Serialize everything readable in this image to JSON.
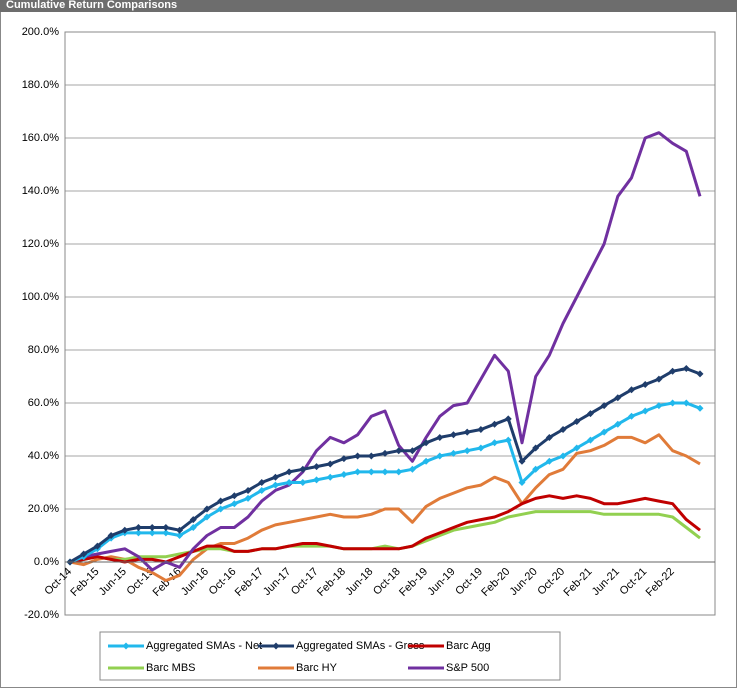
{
  "chart_data": {
    "type": "line",
    "title": "Cumulative Return Comparisons",
    "categories": [
      "Oct-14",
      null,
      "Feb-15",
      null,
      "Jun-15",
      null,
      "Oct-15",
      null,
      "Feb-16",
      null,
      "Jun-16",
      null,
      "Oct-16",
      null,
      "Feb-17",
      null,
      "Jun-17",
      null,
      "Oct-17",
      null,
      "Feb-18",
      null,
      "Jun-18",
      null,
      "Oct-18",
      null,
      "Feb-19",
      null,
      "Jun-19",
      null,
      "Oct-19",
      null,
      "Feb-20",
      null,
      "Jun-20",
      null,
      "Oct-20",
      null,
      "Feb-21",
      null,
      "Jun-21",
      null,
      "Oct-21",
      null,
      "Feb-22",
      null,
      null
    ],
    "ylim": [
      -20,
      200
    ],
    "yticks": [
      {
        "value": -20,
        "label": "-20.0%"
      },
      {
        "value": 0,
        "label": "0.0%"
      },
      {
        "value": 20,
        "label": "20.0%"
      },
      {
        "value": 40,
        "label": "40.0%"
      },
      {
        "value": 60,
        "label": "60.0%"
      },
      {
        "value": 80,
        "label": "80.0%"
      },
      {
        "value": 100,
        "label": "100.0%"
      },
      {
        "value": 120,
        "label": "120.0%"
      },
      {
        "value": 140,
        "label": "140.0%"
      },
      {
        "value": 160,
        "label": "160.0%"
      },
      {
        "value": 180,
        "label": "180.0%"
      },
      {
        "value": 200,
        "label": "200.0%"
      }
    ],
    "grid": true,
    "legend": "bottom",
    "series": [
      {
        "name": "Aggregated SMAs - Net",
        "color": "#21b8ec",
        "marker": "diamond",
        "values": [
          0,
          2,
          5,
          9,
          11,
          11,
          11,
          11,
          10,
          13,
          17,
          20,
          22,
          24,
          27,
          29,
          30,
          30,
          31,
          32,
          33,
          34,
          34,
          34,
          34,
          35,
          38,
          40,
          41,
          42,
          43,
          45,
          46,
          30,
          35,
          38,
          40,
          43,
          46,
          49,
          52,
          55,
          57,
          59,
          60,
          60,
          58
        ]
      },
      {
        "name": "Aggregated SMAs - Gross",
        "color": "#1f3d6b",
        "marker": "diamond",
        "values": [
          0,
          3,
          6,
          10,
          12,
          13,
          13,
          13,
          12,
          16,
          20,
          23,
          25,
          27,
          30,
          32,
          34,
          35,
          36,
          37,
          39,
          40,
          40,
          41,
          42,
          42,
          45,
          47,
          48,
          49,
          50,
          52,
          54,
          38,
          43,
          47,
          50,
          53,
          56,
          59,
          62,
          65,
          67,
          69,
          72,
          73,
          71
        ]
      },
      {
        "name": "Barc Agg",
        "color": "#c00000",
        "values": [
          0,
          1,
          2,
          1,
          0,
          1,
          1,
          0,
          2,
          4,
          6,
          6,
          4,
          4,
          5,
          5,
          6,
          7,
          7,
          6,
          5,
          5,
          5,
          5,
          5,
          6,
          9,
          11,
          13,
          15,
          16,
          17,
          19,
          22,
          24,
          25,
          24,
          25,
          24,
          22,
          22,
          23,
          24,
          23,
          22,
          16,
          12
        ]
      },
      {
        "name": "Barc MBS",
        "color": "#92d050",
        "values": [
          0,
          1,
          2,
          1,
          1,
          2,
          2,
          2,
          3,
          4,
          5,
          5,
          4,
          4,
          5,
          5,
          6,
          6,
          6,
          6,
          5,
          5,
          5,
          6,
          5,
          6,
          8,
          10,
          12,
          13,
          14,
          15,
          17,
          18,
          19,
          19,
          19,
          19,
          19,
          18,
          18,
          18,
          18,
          18,
          17,
          13,
          9
        ]
      },
      {
        "name": "Barc HY",
        "color": "#e07b39",
        "values": [
          0,
          -1,
          1,
          2,
          1,
          -2,
          -4,
          -7,
          -5,
          1,
          5,
          7,
          7,
          9,
          12,
          14,
          15,
          16,
          17,
          18,
          17,
          17,
          18,
          20,
          20,
          15,
          21,
          24,
          26,
          28,
          29,
          32,
          30,
          22,
          28,
          33,
          35,
          41,
          42,
          44,
          47,
          47,
          45,
          48,
          42,
          40,
          37
        ]
      },
      {
        "name": "S&P 500",
        "color": "#7030a0",
        "values": [
          0,
          2,
          3,
          4,
          5,
          2,
          -3,
          0,
          -2,
          5,
          10,
          13,
          13,
          17,
          23,
          27,
          29,
          34,
          42,
          47,
          45,
          48,
          55,
          57,
          44,
          38,
          47,
          55,
          59,
          60,
          69,
          78,
          72,
          45,
          70,
          78,
          90,
          100,
          110,
          120,
          138,
          145,
          160,
          162,
          158,
          155,
          138
        ]
      }
    ]
  }
}
